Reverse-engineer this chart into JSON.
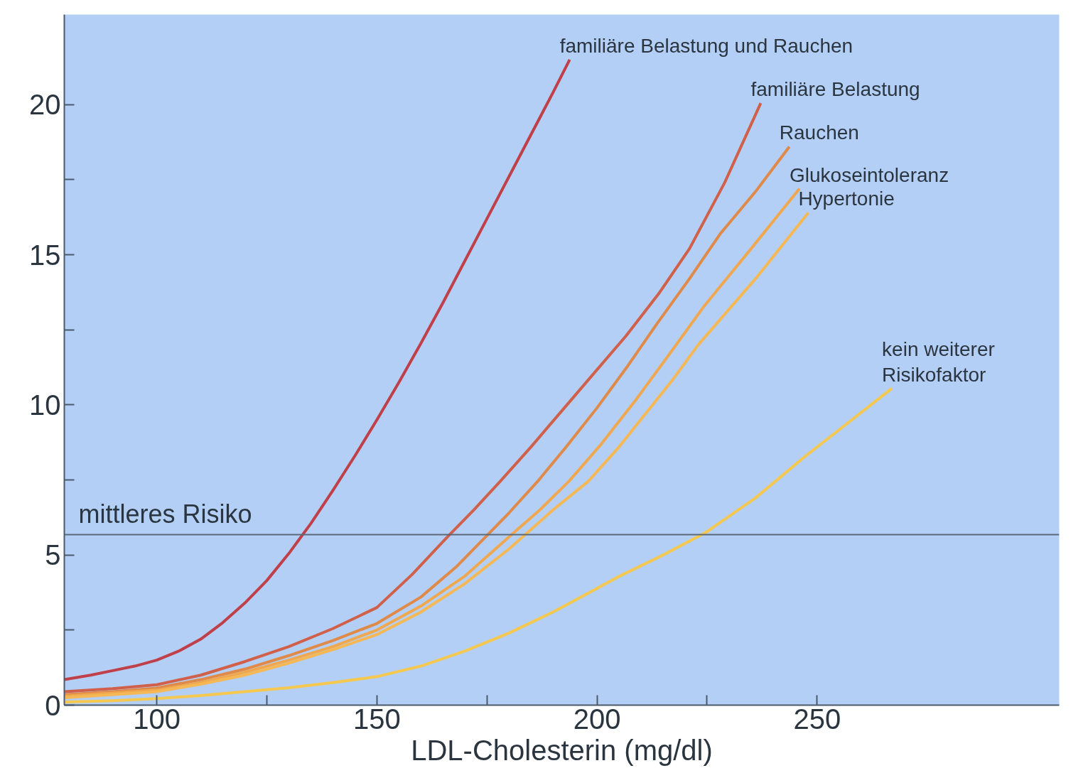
{
  "chart_data": {
    "type": "line",
    "xlabel": "LDL-Cholesterin (mg/dl)",
    "xlim": [
      79,
      305
    ],
    "ylim": [
      0,
      23
    ],
    "xticks": [
      100,
      {
        "value": 125,
        "label": null
      },
      150,
      {
        "value": 175,
        "label": null
      },
      200,
      {
        "value": 225,
        "label": null
      },
      250
    ],
    "yticks": [
      0,
      {
        "value": 2.5,
        "label": null
      },
      5,
      {
        "value": 7.5,
        "label": null
      },
      10,
      {
        "value": 12.5,
        "label": null
      },
      15,
      {
        "value": 17.5,
        "label": null
      },
      20
    ],
    "grid": false,
    "ref_lines": [
      {
        "axis": "y",
        "value": 5.68,
        "label": "mittleres Risiko",
        "color": "#5a6a7a"
      }
    ],
    "series": [
      {
        "name": "familiäre Belastung und Rauchen",
        "color": "#c0404a",
        "x": [
          79,
          85,
          90,
          95,
          100,
          105,
          110,
          115,
          120,
          125,
          130,
          135,
          140,
          145,
          150,
          155,
          160,
          165,
          170,
          175,
          180,
          185,
          190,
          193.8
        ],
        "values": [
          0.85,
          1.0,
          1.15,
          1.3,
          1.5,
          1.8,
          2.2,
          2.75,
          3.4,
          4.15,
          5.05,
          6.05,
          7.15,
          8.3,
          9.5,
          10.75,
          12.05,
          13.4,
          14.8,
          16.2,
          17.6,
          19.0,
          20.4,
          21.5
        ]
      },
      {
        "name": "familiäre Belastung",
        "color": "#d0604a",
        "x": [
          79,
          90,
          100,
          110,
          120,
          130,
          140,
          150,
          158,
          166,
          172,
          178,
          185,
          192,
          199,
          206.6,
          214,
          221,
          229,
          237.2
        ],
        "values": [
          0.45,
          0.55,
          0.68,
          1.0,
          1.45,
          1.95,
          2.55,
          3.25,
          4.35,
          5.6,
          6.5,
          7.45,
          8.6,
          9.8,
          11.0,
          12.3,
          13.7,
          15.2,
          17.4,
          20.05
        ]
      },
      {
        "name": "Rauchen",
        "color": "#e08a4a",
        "x": [
          79,
          90,
          100,
          110,
          120,
          130,
          140,
          150,
          160,
          168,
          174,
          180,
          186.5,
          193,
          200,
          207,
          213.6,
          221,
          228,
          236,
          243.7
        ],
        "values": [
          0.35,
          0.45,
          0.57,
          0.85,
          1.2,
          1.65,
          2.15,
          2.72,
          3.6,
          4.6,
          5.5,
          6.4,
          7.45,
          8.6,
          9.9,
          11.3,
          12.7,
          14.2,
          15.7,
          17.1,
          18.6
        ]
      },
      {
        "name": "Glukoseintoleranz",
        "color": "#f0a850",
        "x": [
          79,
          90,
          100,
          110,
          120,
          130,
          140,
          150,
          160,
          170,
          180,
          187,
          193.6,
          201,
          209,
          216.5,
          224.4,
          235,
          246
        ],
        "values": [
          0.3,
          0.4,
          0.5,
          0.75,
          1.1,
          1.5,
          1.95,
          2.5,
          3.3,
          4.3,
          5.6,
          6.5,
          7.45,
          8.7,
          10.2,
          11.7,
          13.3,
          15.2,
          17.2
        ]
      },
      {
        "name": "Hypertonie",
        "color": "#f5b855",
        "x": [
          79,
          90,
          100,
          110,
          120,
          130,
          140,
          150,
          160,
          170,
          180,
          190,
          198,
          205,
          211,
          217,
          223,
          229.5,
          236,
          242,
          248
        ],
        "values": [
          0.25,
          0.35,
          0.45,
          0.7,
          1.0,
          1.4,
          1.85,
          2.35,
          3.1,
          4.05,
          5.2,
          6.5,
          7.45,
          8.6,
          9.7,
          10.8,
          12,
          13.1,
          14.2,
          15.3,
          16.4
        ]
      },
      {
        "name": "kein weiterer\nRisikofaktor",
        "color": "#f5c850",
        "x": [
          79,
          90,
          100,
          110,
          120,
          130,
          140,
          150,
          160,
          170,
          180,
          190,
          197,
          204.5,
          215,
          224.7,
          236,
          247.4,
          257,
          267
        ],
        "values": [
          0.1,
          0.15,
          0.22,
          0.32,
          0.45,
          0.58,
          0.75,
          0.95,
          1.3,
          1.8,
          2.4,
          3.1,
          3.65,
          4.25,
          5.0,
          5.75,
          6.9,
          8.3,
          9.4,
          10.55
        ]
      }
    ]
  }
}
